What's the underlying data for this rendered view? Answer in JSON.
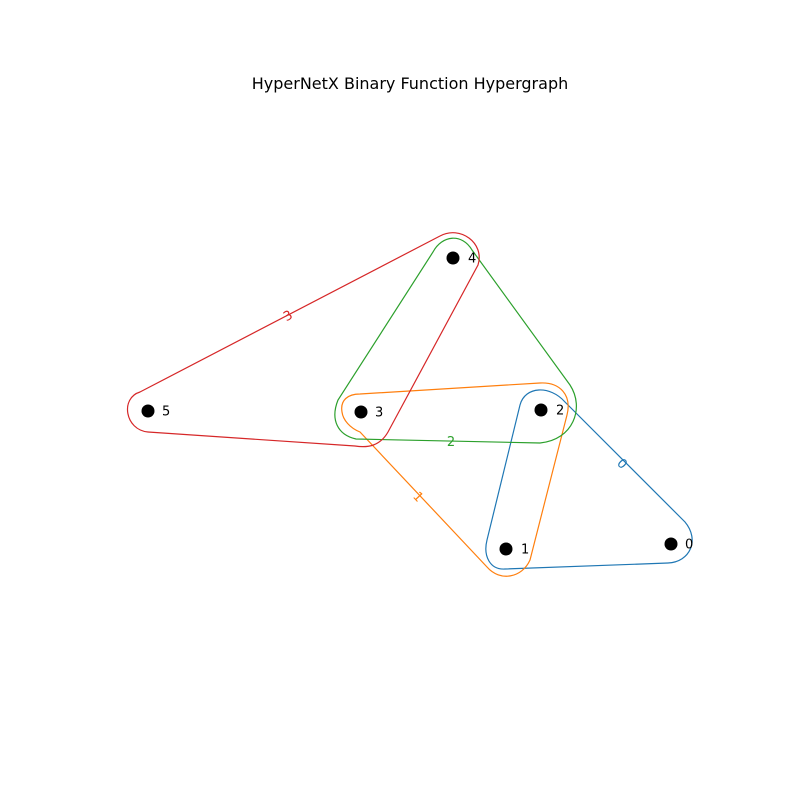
{
  "title": "HyperNetX Binary Function Hypergraph",
  "nodes": [
    {
      "id": "node-0",
      "label": "0"
    },
    {
      "id": "node-1",
      "label": "1"
    },
    {
      "id": "node-2",
      "label": "2"
    },
    {
      "id": "node-3",
      "label": "3"
    },
    {
      "id": "node-4",
      "label": "4"
    },
    {
      "id": "node-5",
      "label": "5"
    }
  ],
  "hyperedges": [
    {
      "label": "0",
      "members": [
        "1",
        "2",
        "0"
      ],
      "color": "#1f77b4"
    },
    {
      "label": "1",
      "members": [
        "3",
        "2",
        "1"
      ],
      "color": "#ff7f0e"
    },
    {
      "label": "2",
      "members": [
        "3",
        "2",
        "4"
      ],
      "color": "#2ca02c"
    },
    {
      "label": "3",
      "members": [
        "5",
        "3",
        "4"
      ],
      "color": "#d62728"
    }
  ]
}
